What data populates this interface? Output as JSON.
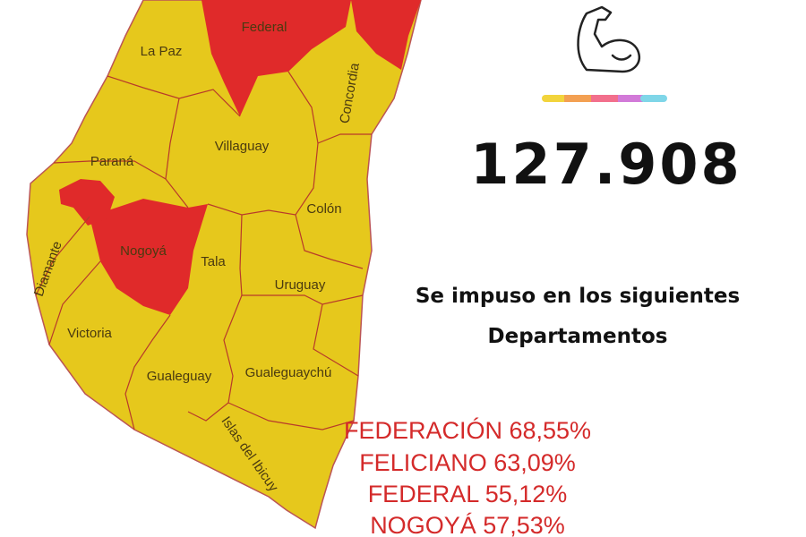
{
  "map": {
    "departments": [
      "Federal",
      "La Paz",
      "Concordia",
      "Villaguay",
      "Paraná",
      "Colón",
      "Nogoyá",
      "Tala",
      "Diamante",
      "Uruguay",
      "Victoria",
      "Gualeguay",
      "Gualeguaychú",
      "Islas del Ibicuy"
    ]
  },
  "panel": {
    "total": "127.908",
    "heading": [
      "Se impuso en los siguientes",
      "Departamentos"
    ],
    "results": [
      "FEDERACIÓN 68,55%",
      "FELICIANO 63,09%",
      "FEDERAL 55,12%",
      "NOGOYÁ 57,53%"
    ]
  }
}
